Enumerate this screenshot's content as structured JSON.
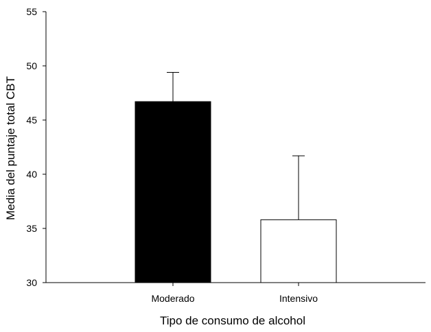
{
  "chart_data": {
    "type": "bar",
    "title": "",
    "xlabel": "Tipo de consumo de alcohol",
    "ylabel": "Media del puntaje total CBT",
    "categories": [
      "Moderado",
      "Intensivo"
    ],
    "values": [
      46.7,
      35.8
    ],
    "error_upper": [
      49.4,
      41.7
    ],
    "bar_colors": [
      "#000000",
      "#ffffff"
    ],
    "ylim": [
      30,
      55
    ],
    "yticks": [
      "30",
      "35",
      "40",
      "45",
      "50",
      "55"
    ],
    "grid": false
  }
}
